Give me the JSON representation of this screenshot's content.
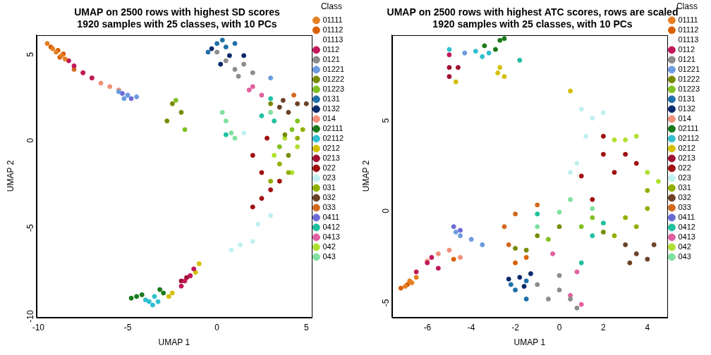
{
  "chart_data": [
    {
      "type": "scatter",
      "title": "UMAP on 2500 rows with highest SD scores\n1920 samples with 25 classes, with 10 PCs",
      "x_label": "UMAP 1",
      "y_label": "UMAP 2",
      "legend_title": "Class",
      "legend": "right",
      "grid": false,
      "xlim": [
        -10.1,
        5.3
      ],
      "xticks": [
        -10,
        -5,
        0,
        5
      ],
      "ylim": [
        -10.4,
        6
      ],
      "yticks": [
        -10,
        -5,
        0,
        5
      ],
      "series": [
        {
          "name": "01111",
          "color": "#e67e22",
          "x": [
            -9.5,
            -9.2,
            -9,
            -8.7,
            -8.5
          ],
          "values": [
            5.5,
            5.2,
            5,
            4.8,
            4.6
          ]
        },
        {
          "name": "01112",
          "color": "#d95f02",
          "x": [
            -9.3,
            -8.9,
            -8.6,
            -8.8
          ],
          "values": [
            5.3,
            5.1,
            4.9,
            4.7
          ]
        },
        {
          "name": "01113",
          "color": "#fafafa",
          "x": [
            -9.7,
            -9.6
          ],
          "values": [
            5.7,
            5.6
          ]
        },
        {
          "name": "0112",
          "color": "#c2185b",
          "x": [
            -8,
            -7.5,
            -7,
            -8.3,
            -1.5,
            -1.8,
            -1.3,
            -2
          ],
          "values": [
            4.2,
            3.8,
            3.5,
            4.5,
            -8,
            -8.3,
            -7.6,
            -8.6
          ]
        },
        {
          "name": "0121",
          "color": "#8c8c8c",
          "x": [
            0.5,
            1,
            1.5,
            0,
            1.2,
            2
          ],
          "values": [
            4.5,
            4,
            4.3,
            5,
            3.6,
            3.8
          ]
        },
        {
          "name": "01221",
          "color": "#6b9be0",
          "x": [
            -5,
            -5.5,
            -4.5,
            -5.2,
            3
          ],
          "values": [
            2.5,
            2.7,
            2.4,
            2.3,
            3.5
          ]
        },
        {
          "name": "01222",
          "color": "#7a8a00",
          "x": [
            -2.5,
            -2,
            -2.8,
            3.8,
            4,
            3
          ],
          "values": [
            2,
            1.5,
            1,
            0.2,
            -1,
            2
          ]
        },
        {
          "name": "01223",
          "color": "#80c020",
          "x": [
            -2.3,
            -1.8,
            4.2,
            4.5,
            3.5
          ],
          "values": [
            2.2,
            0.5,
            0.5,
            1,
            -0.5
          ]
        },
        {
          "name": "0131",
          "color": "#1f6fa8",
          "x": [
            0,
            0.5,
            -0.5,
            1,
            0.3
          ],
          "values": [
            5.5,
            5.3,
            5,
            5.5,
            5.7
          ]
        },
        {
          "name": "0132",
          "color": "#0b2a6b",
          "x": [
            -0.3,
            0.7,
            0.2,
            1.5
          ],
          "values": [
            5.2,
            4.8,
            4.3,
            4.8
          ]
        },
        {
          "name": "014",
          "color": "#f0907a",
          "x": [
            -7,
            -6.5,
            -6,
            -7.5,
            -5.5
          ],
          "values": [
            3.5,
            3.2,
            3,
            3.8,
            2.8
          ]
        },
        {
          "name": "02111",
          "color": "#1a7a1a",
          "x": [
            -4.5,
            -4.2,
            -4.8,
            -3.2,
            -3
          ],
          "values": [
            -9.2,
            -9.1,
            -9.3,
            -8.8,
            -9
          ]
        },
        {
          "name": "02112",
          "color": "#30c0d0",
          "x": [
            -3.8,
            -3.5,
            -3.6,
            -4,
            -3.3
          ],
          "values": [
            -9.5,
            -9.2,
            -9.7,
            -9.4,
            -9.5
          ]
        },
        {
          "name": "0212",
          "color": "#d4c000",
          "x": [
            -1,
            -1.2,
            -2.5,
            -2.7
          ],
          "values": [
            -7.3,
            -7.8,
            -9,
            -9.2
          ]
        },
        {
          "name": "0213",
          "color": "#a01030",
          "x": [
            -1.5,
            -2,
            -1.7
          ],
          "values": [
            -8,
            -8.3,
            -8.1
          ]
        },
        {
          "name": "022",
          "color": "#a01010",
          "x": [
            2,
            2.5,
            3,
            2,
            2.8,
            3.5,
            2.5
          ],
          "values": [
            -1,
            -2,
            -3,
            -4,
            0,
            -2.5,
            -3.5
          ]
        },
        {
          "name": "023",
          "color": "#c0f0f0",
          "x": [
            2.3,
            2,
            1.3,
            3,
            1.5,
            0.8
          ],
          "values": [
            -5,
            -6,
            -6.2,
            -4.5,
            0.3,
            -6.5
          ]
        },
        {
          "name": "031",
          "color": "#90b000",
          "x": [
            3.5,
            4,
            4.5,
            3,
            4.8
          ],
          "values": [
            -1.5,
            -2,
            0,
            -2.5,
            0.5
          ]
        },
        {
          "name": "032",
          "color": "#6b4226",
          "x": [
            4,
            4.5,
            3.7,
            5,
            3.5
          ],
          "values": [
            1.5,
            2,
            2.2,
            2,
            1.8
          ]
        },
        {
          "name": "033",
          "color": "#d2691e",
          "x": [
            -8,
            4.3
          ],
          "values": [
            4,
            2.5
          ]
        },
        {
          "name": "0411",
          "color": "#6b6bd6",
          "x": [
            -5,
            -5.3,
            -4.8
          ],
          "values": [
            2.5,
            2.6,
            2.3
          ]
        },
        {
          "name": "0412",
          "color": "#20c0a0",
          "x": [
            3,
            2.5,
            0.5,
            3.2
          ],
          "values": [
            2.3,
            1.3,
            0.2,
            1
          ]
        },
        {
          "name": "0413",
          "color": "#e060a0",
          "x": [
            2,
            2.5,
            1.8
          ],
          "values": [
            3,
            2.5,
            2.8
          ]
        },
        {
          "name": "042",
          "color": "#b0e030",
          "x": [
            3.8,
            4.5,
            3.2,
            4.2
          ],
          "values": [
            0,
            -0.5,
            -1,
            -2
          ]
        },
        {
          "name": "043",
          "color": "#80e0a0",
          "x": [
            0.5,
            0.8,
            0.3,
            1,
            3
          ],
          "values": [
            1,
            0.3,
            1.5,
            0,
            1.5
          ]
        }
      ]
    },
    {
      "type": "scatter",
      "title": "UMAP on 2500 rows with highest ATC scores, rows are scaled\n1920 samples with 25 classes, with 10 PCs",
      "x_label": "UMAP 1",
      "y_label": "UMAP 2",
      "legend_title": "Class",
      "legend": "right",
      "grid": false,
      "xlim": [
        -7.6,
        4.9
      ],
      "xticks": [
        -6,
        -4,
        -2,
        0,
        2,
        4
      ],
      "ylim": [
        -6,
        9.6
      ],
      "yticks": [
        -5,
        0,
        5
      ],
      "series": [
        {
          "name": "01111",
          "color": "#e67e22",
          "x": [
            -7,
            -6.8,
            -6.5,
            -6.7
          ],
          "values": [
            -4.3,
            -4,
            -3.8,
            -4.1
          ]
        },
        {
          "name": "01112",
          "color": "#d95f02",
          "x": [
            -7.2,
            -6.9,
            -2,
            -1.5,
            -4.8
          ],
          "values": [
            -4.4,
            -4.2,
            -3,
            -2.7,
            -2.8
          ]
        },
        {
          "name": "01113",
          "color": "#fafafa",
          "x": [
            -7.3
          ],
          "values": [
            -4.5
          ]
        },
        {
          "name": "0112",
          "color": "#c2185b",
          "x": [
            -6.5,
            -6,
            -5.8,
            -5.5,
            -5
          ],
          "values": [
            -3.5,
            -3,
            -2.7,
            -3.3,
            8.5
          ]
        },
        {
          "name": "0121",
          "color": "#8c8c8c",
          "x": [
            0,
            0.5,
            -0.5,
            0.8,
            -1,
            0
          ],
          "values": [
            -4.5,
            -5,
            -5,
            -5.5,
            -4.2,
            -3.7
          ]
        },
        {
          "name": "01221",
          "color": "#6b9be0",
          "x": [
            -4.5,
            -4,
            -4.7,
            -3.5,
            -4.3
          ],
          "values": [
            -1.5,
            -1.7,
            -1.3,
            -2,
            8.6
          ]
        },
        {
          "name": "01222",
          "color": "#7a8a00",
          "x": [
            -2,
            -1.5,
            -1,
            0,
            2
          ],
          "values": [
            -2.2,
            -2.3,
            -1.5,
            -1,
            -1.3
          ]
        },
        {
          "name": "01223",
          "color": "#80c020",
          "x": [
            -0.5,
            1,
            1.5
          ],
          "values": [
            -1.7,
            -1,
            -0.5
          ]
        },
        {
          "name": "0131",
          "color": "#1f6fa8",
          "x": [
            -1.5,
            -2,
            -1.5,
            -2.2
          ],
          "values": [
            -4,
            -4.5,
            -5,
            -4.2
          ]
        },
        {
          "name": "0132",
          "color": "#0b2a6b",
          "x": [
            -1.3,
            -1.8,
            -1.6,
            -2.3
          ],
          "values": [
            -3.6,
            -3.8,
            -4.3,
            -3.9
          ]
        },
        {
          "name": "014",
          "color": "#f0907a",
          "x": [
            -5.5,
            -5,
            -4.5,
            -6
          ],
          "values": [
            -2.5,
            -2.3,
            -2.7,
            -2.9
          ]
        },
        {
          "name": "02111",
          "color": "#1a7a1a",
          "x": [
            -3.4,
            -2.7,
            -2.5,
            -2.9
          ],
          "values": [
            9,
            9.3,
            9.4,
            8.8
          ]
        },
        {
          "name": "02112",
          "color": "#30c0d0",
          "x": [
            -3.8,
            -3.5,
            -3.2,
            -5
          ],
          "values": [
            8.7,
            8.4,
            8.6,
            8.8
          ]
        },
        {
          "name": "0212",
          "color": "#d4c000",
          "x": [
            -2.8,
            -2.5,
            -2.7,
            0.5,
            -4.7
          ],
          "values": [
            7.5,
            7.3,
            7.8,
            6.5,
            7
          ]
        },
        {
          "name": "0213",
          "color": "#a01030",
          "x": [
            -5,
            -4.6,
            -5
          ],
          "values": [
            7.3,
            7.8,
            7.8
          ]
        },
        {
          "name": "022",
          "color": "#a01010",
          "x": [
            2,
            3,
            2.5,
            1.5,
            3.5,
            2,
            1
          ],
          "values": [
            4,
            3,
            2,
            0.5,
            2.5,
            3,
            1.8
          ]
        },
        {
          "name": "023",
          "color": "#c0f0f0",
          "x": [
            1,
            1.5,
            1.2,
            0.8,
            2,
            0.5
          ],
          "values": [
            5.5,
            5,
            4,
            2.5,
            5.3,
            2
          ]
        },
        {
          "name": "031",
          "color": "#90b000",
          "x": [
            3.5,
            4,
            3,
            2.5,
            4
          ],
          "values": [
            -1,
            0,
            -0.5,
            -1.5,
            1
          ]
        },
        {
          "name": "032",
          "color": "#6b4226",
          "x": [
            3.5,
            4,
            3.2,
            4.3,
            3
          ],
          "values": [
            -2.5,
            -2.8,
            -3,
            -2,
            -2
          ]
        },
        {
          "name": "033",
          "color": "#d2691e",
          "x": [
            -2.5,
            -2,
            -1,
            -2.3
          ],
          "values": [
            -1,
            -0.3,
            0.2,
            -2
          ]
        },
        {
          "name": "0411",
          "color": "#6b6bd6",
          "x": [
            -4.8,
            -4.5
          ],
          "values": [
            -1,
            -1.2
          ]
        },
        {
          "name": "0412",
          "color": "#20c0a0",
          "x": [
            2,
            1.5,
            -1.8,
            -1,
            1
          ],
          "values": [
            -0.8,
            -1.5,
            8.2,
            -0.3,
            -3
          ]
        },
        {
          "name": "0413",
          "color": "#e060a0",
          "x": [
            0.5,
            0.8,
            1,
            -0.3
          ],
          "values": [
            -4.8,
            -3.5,
            -5.3,
            -2.5
          ]
        },
        {
          "name": "042",
          "color": "#b0e030",
          "x": [
            3,
            4,
            3.5,
            4.5,
            2.5
          ],
          "values": [
            3.8,
            2,
            4,
            1.5,
            3.8
          ]
        },
        {
          "name": "043",
          "color": "#80e0a0",
          "x": [
            1.5,
            0.5,
            -1,
            0
          ],
          "values": [
            0,
            0.5,
            -1,
            -0.2
          ]
        }
      ]
    }
  ]
}
